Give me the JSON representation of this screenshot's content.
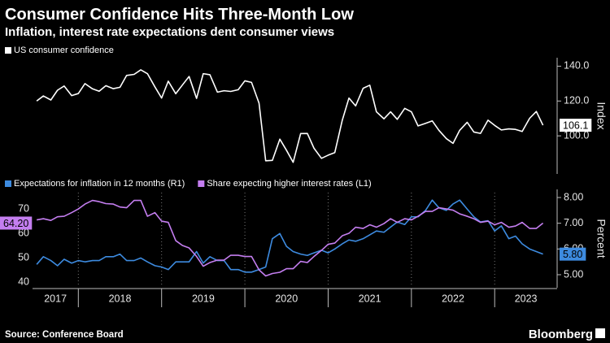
{
  "title": "Consumer Confidence Hits Three-Month Low",
  "subtitle": "Inflation, interest rate expectations dent consumer views",
  "source": "Source: Conference Board",
  "brand": "Bloomberg",
  "chart_data": [
    {
      "type": "line",
      "y_label": "Index",
      "y_axis_side": "right",
      "x": [
        2017.5,
        2017.58,
        2017.67,
        2017.75,
        2017.83,
        2017.92,
        2018,
        2018.08,
        2018.17,
        2018.25,
        2018.33,
        2018.42,
        2018.5,
        2018.58,
        2018.67,
        2018.75,
        2018.83,
        2018.92,
        2019,
        2019.08,
        2019.17,
        2019.25,
        2019.33,
        2019.42,
        2019.5,
        2019.58,
        2019.67,
        2019.75,
        2019.83,
        2019.92,
        2020,
        2020.08,
        2020.17,
        2020.25,
        2020.33,
        2020.42,
        2020.5,
        2020.58,
        2020.67,
        2020.75,
        2020.83,
        2020.92,
        2021,
        2021.08,
        2021.17,
        2021.25,
        2021.33,
        2021.42,
        2021.5,
        2021.58,
        2021.67,
        2021.75,
        2021.83,
        2021.92,
        2022,
        2022.08,
        2022.17,
        2022.25,
        2022.33,
        2022.42,
        2022.5,
        2022.58,
        2022.67,
        2022.75,
        2022.83,
        2022.92,
        2023,
        2023.08,
        2023.17,
        2023.25,
        2023.33,
        2023.42,
        2023.5,
        2023.58
      ],
      "xlim": [
        2017.45,
        2023.75
      ],
      "ylim": [
        80,
        143
      ],
      "yticks": [
        {
          "value": 100,
          "label": "100.0"
        },
        {
          "value": 120,
          "label": "120.0"
        },
        {
          "value": 140,
          "label": "140.0"
        }
      ],
      "series": [
        {
          "name": "US consumer confidence",
          "color": "#ffffff",
          "values": [
            120.0,
            122.9,
            120.6,
            126.2,
            128.6,
            123.1,
            124.3,
            130.0,
            127.0,
            125.6,
            128.8,
            127.1,
            127.9,
            134.7,
            135.3,
            137.9,
            135.7,
            128.1,
            121.7,
            131.4,
            124.2,
            129.2,
            134.1,
            121.5,
            135.7,
            135.1,
            125.1,
            125.9,
            125.5,
            126.5,
            131.6,
            130.7,
            118.8,
            85.7,
            85.9,
            98.1,
            91.7,
            84.8,
            101.3,
            101.4,
            92.9,
            87.1,
            88.9,
            90.4,
            109.0,
            121.7,
            117.2,
            127.3,
            129.1,
            113.8,
            109.8,
            113.8,
            109.5,
            115.8,
            113.8,
            105.7,
            107.2,
            108.6,
            103.2,
            98.4,
            95.7,
            103.2,
            107.8,
            102.2,
            101.4,
            109.0,
            106.0,
            103.4,
            104.0,
            103.7,
            102.5,
            110.1,
            114.0,
            106.1
          ]
        }
      ]
    },
    {
      "type": "line",
      "y2_label": "Percent",
      "x": [
        2017.5,
        2017.58,
        2017.67,
        2017.75,
        2017.83,
        2017.92,
        2018,
        2018.08,
        2018.17,
        2018.25,
        2018.33,
        2018.42,
        2018.5,
        2018.58,
        2018.67,
        2018.75,
        2018.83,
        2018.92,
        2019,
        2019.08,
        2019.17,
        2019.25,
        2019.33,
        2019.42,
        2019.5,
        2019.58,
        2019.67,
        2019.75,
        2019.83,
        2019.92,
        2020,
        2020.08,
        2020.17,
        2020.25,
        2020.33,
        2020.42,
        2020.5,
        2020.58,
        2020.67,
        2020.75,
        2020.83,
        2020.92,
        2021,
        2021.08,
        2021.17,
        2021.25,
        2021.33,
        2021.42,
        2021.5,
        2021.58,
        2021.67,
        2021.75,
        2021.83,
        2021.92,
        2022,
        2022.08,
        2022.17,
        2022.25,
        2022.33,
        2022.42,
        2022.5,
        2022.58,
        2022.67,
        2022.75,
        2022.83,
        2022.92,
        2023,
        2023.08,
        2023.17,
        2023.25,
        2023.33,
        2023.42,
        2023.5,
        2023.58
      ],
      "xlim": [
        2017.45,
        2023.75
      ],
      "xticks": [
        2017,
        2018,
        2019,
        2020,
        2021,
        2022,
        2023
      ],
      "ylim": [
        39,
        76.7
      ],
      "yticks": [
        40,
        50,
        60,
        70
      ],
      "y2lim": [
        4.62,
        8.19
      ],
      "y2ticks": [
        {
          "value": 5,
          "label": "5.00"
        },
        {
          "value": 6,
          "label": "6.00"
        },
        {
          "value": 7,
          "label": "7.00"
        },
        {
          "value": 8,
          "label": "8.00"
        }
      ],
      "series": [
        {
          "name": "Expectations for inflation in 12 months (R1)",
          "color": "#3d8be0",
          "axis": "y2",
          "values": [
            5.4,
            5.7,
            5.55,
            5.35,
            5.6,
            5.45,
            5.55,
            5.5,
            5.55,
            5.55,
            5.7,
            5.7,
            5.8,
            5.55,
            5.55,
            5.65,
            5.5,
            5.35,
            5.3,
            5.2,
            5.5,
            5.5,
            5.5,
            5.9,
            5.45,
            5.7,
            5.55,
            5.55,
            5.2,
            5.2,
            5.1,
            5.1,
            5.2,
            5.3,
            6.4,
            6.6,
            6.1,
            5.9,
            5.8,
            5.75,
            5.85,
            5.95,
            5.85,
            6.0,
            6.2,
            6.35,
            6.3,
            6.4,
            6.55,
            6.7,
            6.65,
            6.85,
            7.05,
            6.95,
            7.25,
            7.25,
            7.5,
            7.9,
            7.6,
            7.5,
            7.75,
            7.9,
            7.55,
            7.25,
            7.05,
            7.1,
            6.7,
            6.9,
            6.4,
            6.5,
            6.2,
            6.0,
            5.9,
            5.8
          ],
          "value_labels": {
            "73": "5.80"
          }
        },
        {
          "name": "Share expecting higher interest rates (L1)",
          "color": "#c47ef0",
          "values": [
            65.5,
            66.0,
            65.3,
            66.8,
            67.0,
            68.5,
            70.0,
            72.0,
            73.5,
            73.0,
            72.2,
            72.0,
            70.8,
            70.5,
            73.5,
            73.5,
            67.0,
            68.5,
            65.0,
            64.5,
            57.0,
            55.0,
            54.0,
            50.5,
            46.5,
            48.0,
            49.0,
            49.0,
            51.0,
            51.0,
            50.5,
            50.5,
            45.0,
            42.5,
            43.5,
            44.0,
            45.5,
            45.5,
            48.5,
            48.0,
            50.5,
            53.0,
            55.5,
            56.0,
            59.0,
            60.0,
            62.5,
            62.0,
            63.5,
            62.5,
            64.0,
            66.0,
            64.5,
            66.0,
            65.5,
            67.0,
            69.0,
            69.0,
            70.5,
            70.0,
            69.5,
            68.0,
            67.0,
            66.0,
            64.5,
            65.0,
            63.5,
            64.5,
            62.5,
            63.0,
            64.5,
            62.0,
            62.0,
            64.2
          ],
          "value_labels": {
            "73": "64.20"
          }
        }
      ]
    }
  ]
}
